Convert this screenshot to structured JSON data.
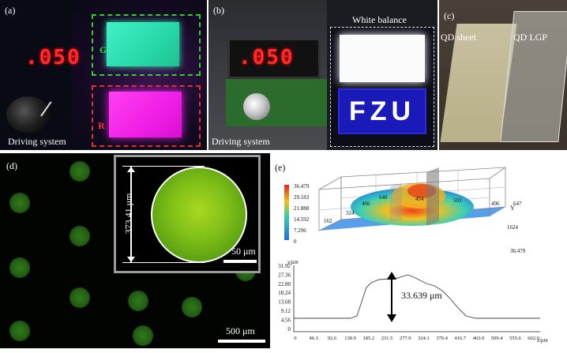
{
  "panel_a": {
    "label": "(a)",
    "display": ".050",
    "caption": "Driving system",
    "green_tag": "G",
    "red_tag": "R",
    "colors": {
      "green_panel": "#2ee6b0",
      "magenta_panel": "#f01ee6",
      "green_box": "#33cc33",
      "red_box": "#e03030"
    }
  },
  "panel_b": {
    "label": "(b)",
    "display": ".050",
    "caption": "Driving system",
    "white_balance": "White balance",
    "sign_text": "FZU"
  },
  "panel_c": {
    "label": "(c)",
    "sheet_label": "QD sheet",
    "lgp_label": "QD LGP"
  },
  "panel_d": {
    "label": "(d)",
    "inset_dimension": "373.41 μm",
    "inset_scale": "50 μm",
    "main_scale": "500 μm"
  },
  "panel_e": {
    "label": "(e)",
    "surface": {
      "y_axis_letter": "Y",
      "colorbar_ticks": [
        "36.479",
        "29.183",
        "21.888",
        "14.592",
        "7.296",
        "0"
      ],
      "dimension_labels": [
        "648",
        "454",
        "503",
        "496",
        "466",
        "324",
        "162",
        "647",
        "1624",
        "36.479"
      ]
    },
    "profile": {
      "y_unit": "y/μm",
      "x_unit": "x/μm",
      "y_ticks": [
        "31.92",
        "27.36",
        "22.80",
        "18.24",
        "13.68",
        "9.12",
        "4.56",
        "0"
      ],
      "x_ticks": [
        "0",
        "46.3",
        "92.6",
        "138.9",
        "185.2",
        "231.5",
        "277.9",
        "324.1",
        "370.4",
        "416.7",
        "463.0",
        "509.4",
        "555.6",
        "602.0"
      ],
      "height_annotation": "33.639 μm"
    }
  }
}
